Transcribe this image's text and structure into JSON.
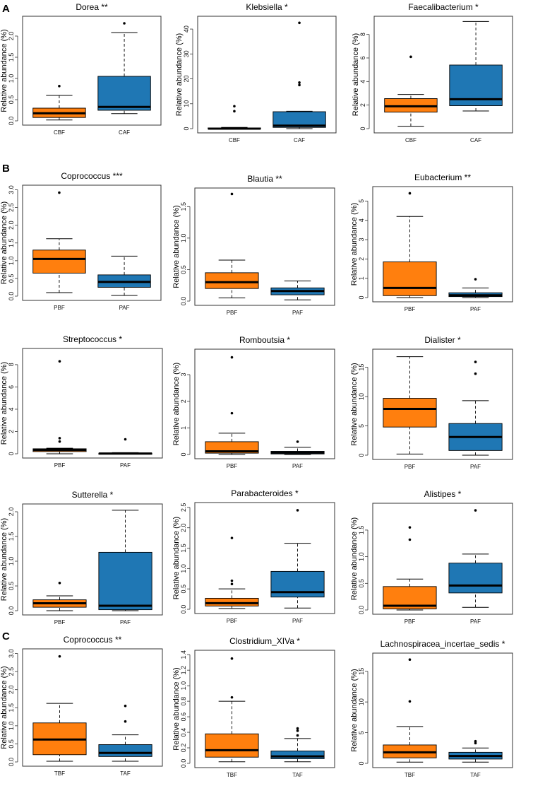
{
  "figure": {
    "panel_labels": [
      "A",
      "B",
      "C"
    ]
  },
  "colors": {
    "group1": "#ff7f0e",
    "group2": "#1f77b4",
    "median": "#000000",
    "frame": "#333333"
  },
  "chart_data": [
    {
      "type": "box",
      "panel": "A",
      "title": "Dorea **",
      "ylabel": "Relative abundance (%)",
      "ylim": [
        0,
        2.4
      ],
      "yticks": [
        "0.0",
        "0.5",
        "1.0",
        "1.5",
        "2.0"
      ],
      "categories": [
        "CBF",
        "CAF"
      ],
      "boxes": [
        {
          "min": 0.02,
          "q1": 0.08,
          "median": 0.18,
          "q3": 0.3,
          "max": 0.6,
          "outliers": [
            0.82
          ]
        },
        {
          "min": 0.17,
          "q1": 0.25,
          "median": 0.33,
          "q3": 1.05,
          "max": 2.08,
          "outliers": [
            2.3
          ]
        }
      ]
    },
    {
      "type": "box",
      "panel": "A",
      "title": "Klebsiella *",
      "ylabel": "Relative abundance (%)",
      "ylim": [
        0,
        44
      ],
      "yticks": [
        "0",
        "10",
        "20",
        "30",
        "40"
      ],
      "categories": [
        "CBF",
        "CAF"
      ],
      "boxes": [
        {
          "min": 0,
          "q1": 0,
          "median": 0,
          "q3": 0.3,
          "max": 0.5,
          "outliers": [
            7,
            9
          ]
        },
        {
          "min": 0,
          "q1": 0.5,
          "median": 1.2,
          "q3": 6.8,
          "max": 7,
          "outliers": [
            17.5,
            18.5,
            42.5
          ]
        }
      ]
    },
    {
      "type": "box",
      "panel": "A",
      "title": "Faecalibacterium *",
      "ylabel": "Relative abundance (%)",
      "ylim": [
        0,
        9.3
      ],
      "yticks": [
        "0",
        "2",
        "4",
        "6",
        "8"
      ],
      "categories": [
        "CBF",
        "CAF"
      ],
      "boxes": [
        {
          "min": 0.2,
          "q1": 1.4,
          "median": 1.9,
          "q3": 2.55,
          "max": 2.9,
          "outliers": [
            6.1
          ]
        },
        {
          "min": 1.5,
          "q1": 1.95,
          "median": 2.5,
          "q3": 5.4,
          "max": 9.1,
          "outliers": []
        }
      ]
    },
    {
      "type": "box",
      "panel": "B",
      "title": "Coprococcus ***",
      "ylabel": "Relative abundance (%)",
      "ylim": [
        0,
        3.05
      ],
      "yticks": [
        "0.0",
        "0.5",
        "1.0",
        "1.5",
        "2.0",
        "2.5",
        "3.0"
      ],
      "categories": [
        "PBF",
        "PAF"
      ],
      "boxes": [
        {
          "min": 0.1,
          "q1": 0.65,
          "median": 1.05,
          "q3": 1.3,
          "max": 1.62,
          "outliers": [
            2.92
          ]
        },
        {
          "min": 0.02,
          "q1": 0.25,
          "median": 0.4,
          "q3": 0.6,
          "max": 1.13,
          "outliers": []
        }
      ]
    },
    {
      "type": "box",
      "panel": "B",
      "title": "Blautia **",
      "ylabel": "Relative abundance (%)",
      "ylim": [
        0,
        1.75
      ],
      "yticks": [
        "0.0",
        "0.5",
        "1.0",
        "1.5"
      ],
      "categories": [
        "PBF",
        "PAF"
      ],
      "boxes": [
        {
          "min": 0.05,
          "q1": 0.2,
          "median": 0.3,
          "q3": 0.45,
          "max": 0.65,
          "outliers": [
            1.7
          ]
        },
        {
          "min": 0.02,
          "q1": 0.1,
          "median": 0.16,
          "q3": 0.21,
          "max": 0.32,
          "outliers": []
        }
      ]
    },
    {
      "type": "box",
      "panel": "B",
      "title": "Eubacterium **",
      "ylabel": "Relative abundance (%)",
      "ylim": [
        0,
        5.6
      ],
      "yticks": [
        "0",
        "1",
        "2",
        "3",
        "4",
        "5"
      ],
      "categories": [
        "PBF",
        "PAF"
      ],
      "boxes": [
        {
          "min": 0,
          "q1": 0.1,
          "median": 0.5,
          "q3": 1.85,
          "max": 4.2,
          "outliers": [
            5.4
          ]
        },
        {
          "min": 0,
          "q1": 0.05,
          "median": 0.12,
          "q3": 0.25,
          "max": 0.5,
          "outliers": [
            0.95
          ]
        }
      ]
    },
    {
      "type": "box",
      "panel": "B",
      "title": "Streptococcus *",
      "ylabel": "Relative abundance (%)",
      "ylim": [
        0,
        9.2
      ],
      "yticks": [
        "0",
        "2",
        "4",
        "6",
        "8"
      ],
      "categories": [
        "PBF",
        "PAF"
      ],
      "boxes": [
        {
          "min": 0,
          "q1": 0.2,
          "median": 0.35,
          "q3": 0.45,
          "max": 0.5,
          "outliers": [
            1.1,
            1.4,
            8.3
          ]
        },
        {
          "min": 0,
          "q1": 0,
          "median": 0.02,
          "q3": 0.05,
          "max": 0.1,
          "outliers": [
            1.3
          ]
        }
      ]
    },
    {
      "type": "box",
      "panel": "B",
      "title": "Romboutsia *",
      "ylabel": "Relative abundance (%)",
      "ylim": [
        0,
        3.85
      ],
      "yticks": [
        "0",
        "1",
        "2",
        "3"
      ],
      "categories": [
        "PBF",
        "PAF"
      ],
      "boxes": [
        {
          "min": 0,
          "q1": 0.05,
          "median": 0.12,
          "q3": 0.48,
          "max": 0.8,
          "outliers": [
            1.55,
            3.65
          ]
        },
        {
          "min": 0,
          "q1": 0.02,
          "median": 0.07,
          "q3": 0.12,
          "max": 0.27,
          "outliers": [
            0.48
          ]
        }
      ]
    },
    {
      "type": "box",
      "panel": "B",
      "title": "Dialister *",
      "ylabel": "Relative abundance (%)",
      "ylim": [
        0,
        17.6
      ],
      "yticks": [
        "0",
        "5",
        "10",
        "15"
      ],
      "categories": [
        "PBF",
        "PAF"
      ],
      "boxes": [
        {
          "min": 0.2,
          "q1": 4.8,
          "median": 7.9,
          "q3": 9.7,
          "max": 16.8,
          "outliers": []
        },
        {
          "min": 0,
          "q1": 0.8,
          "median": 3.1,
          "q3": 5.4,
          "max": 9.3,
          "outliers": [
            13.9,
            15.9
          ]
        }
      ]
    },
    {
      "type": "box",
      "panel": "B",
      "title": "Sutterella *",
      "ylabel": "Relative abundance (%)",
      "ylim": [
        0,
        2.1
      ],
      "yticks": [
        "0.0",
        "0.5",
        "1.0",
        "1.5",
        "2.0"
      ],
      "categories": [
        "PBF",
        "PAF"
      ],
      "boxes": [
        {
          "min": 0,
          "q1": 0.07,
          "median": 0.15,
          "q3": 0.22,
          "max": 0.3,
          "outliers": [
            0.56
          ]
        },
        {
          "min": 0,
          "q1": 0.02,
          "median": 0.1,
          "q3": 1.18,
          "max": 2.03,
          "outliers": []
        }
      ]
    },
    {
      "type": "box",
      "panel": "B",
      "title": "Parabacteroides *",
      "ylabel": "Relative abundance (%)",
      "ylim": [
        0,
        2.55
      ],
      "yticks": [
        "0.0",
        "0.5",
        "1.0",
        "1.5",
        "2.0",
        "2.5"
      ],
      "categories": [
        "PBF",
        "PAF"
      ],
      "boxes": [
        {
          "min": 0.02,
          "q1": 0.08,
          "median": 0.15,
          "q3": 0.27,
          "max": 0.5,
          "outliers": [
            0.62,
            0.7,
            1.75
          ]
        },
        {
          "min": 0.03,
          "q1": 0.3,
          "median": 0.42,
          "q3": 0.93,
          "max": 1.62,
          "outliers": [
            2.43
          ]
        }
      ]
    },
    {
      "type": "box",
      "panel": "B",
      "title": "Alistipes *",
      "ylabel": "Relative abundance (%)",
      "ylim": [
        0,
        1.95
      ],
      "yticks": [
        "0.0",
        "0.5",
        "1.0",
        "1.5"
      ],
      "categories": [
        "PBF",
        "PAF"
      ],
      "boxes": [
        {
          "min": 0,
          "q1": 0.02,
          "median": 0.08,
          "q3": 0.44,
          "max": 0.58,
          "outliers": [
            1.32,
            1.55
          ]
        },
        {
          "min": 0.05,
          "q1": 0.32,
          "median": 0.46,
          "q3": 0.88,
          "max": 1.05,
          "outliers": [
            1.87
          ]
        }
      ]
    },
    {
      "type": "box",
      "panel": "C",
      "title": "Coprococcus **",
      "ylabel": "Relative abundance (%)",
      "ylim": [
        0,
        3.05
      ],
      "yticks": [
        "0.0",
        "0.5",
        "1.0",
        "1.5",
        "2.0",
        "2.5",
        "3.0"
      ],
      "categories": [
        "TBF",
        "TAF"
      ],
      "boxes": [
        {
          "min": 0.02,
          "q1": 0.2,
          "median": 0.62,
          "q3": 1.08,
          "max": 1.62,
          "outliers": [
            2.92
          ]
        },
        {
          "min": 0.02,
          "q1": 0.15,
          "median": 0.25,
          "q3": 0.48,
          "max": 0.75,
          "outliers": [
            1.12,
            1.55
          ]
        }
      ]
    },
    {
      "type": "box",
      "panel": "C",
      "title": "Clostridium_XIVa *",
      "ylabel": "Relative abundance (%)",
      "ylim": [
        0,
        1.42
      ],
      "yticks": [
        "0.0",
        "0.2",
        "0.4",
        "0.6",
        "0.8",
        "1.0",
        "1.2",
        "1.4"
      ],
      "categories": [
        "TBF",
        "TAF"
      ],
      "boxes": [
        {
          "min": 0.02,
          "q1": 0.08,
          "median": 0.17,
          "q3": 0.38,
          "max": 0.8,
          "outliers": [
            0.85,
            1.35
          ]
        },
        {
          "min": 0.02,
          "q1": 0.06,
          "median": 0.09,
          "q3": 0.16,
          "max": 0.32,
          "outliers": [
            0.36,
            0.42,
            0.45
          ]
        }
      ]
    },
    {
      "type": "box",
      "panel": "C",
      "title": "Lachnospiracea_incertae_sedis *",
      "ylabel": "Relative abundance (%)",
      "ylim": [
        0,
        17.5
      ],
      "yticks": [
        "0",
        "5",
        "10",
        "15"
      ],
      "categories": [
        "TBF",
        "TAF"
      ],
      "boxes": [
        {
          "min": 0.2,
          "q1": 0.9,
          "median": 1.8,
          "q3": 3,
          "max": 6,
          "outliers": [
            10.1,
            16.9
          ]
        },
        {
          "min": 0.2,
          "q1": 0.7,
          "median": 1.2,
          "q3": 1.8,
          "max": 2.5,
          "outliers": [
            3.3,
            3.6
          ]
        }
      ]
    }
  ]
}
